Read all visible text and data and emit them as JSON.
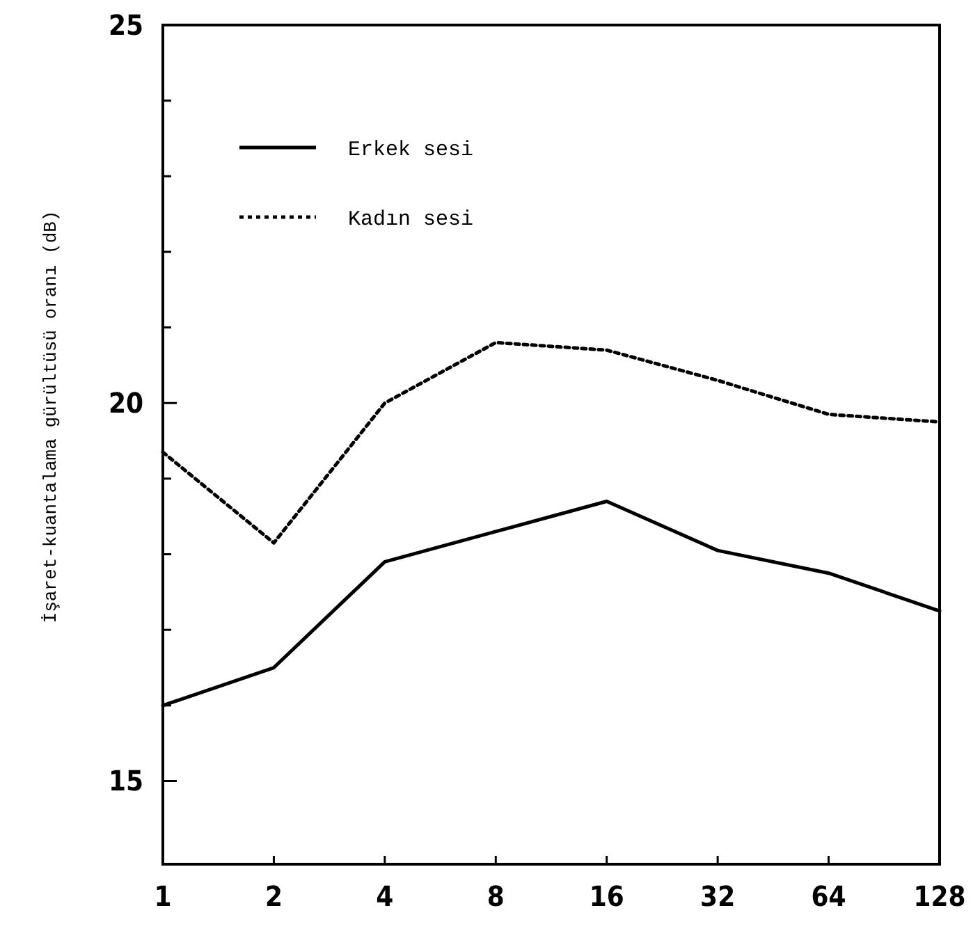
{
  "chart_data": {
    "type": "line",
    "ylabel": "İşaret-kuantalama gürültüsü oranı (dB)",
    "categories": [
      "1",
      "2",
      "4",
      "8",
      "16",
      "32",
      "64",
      "128"
    ],
    "ylim": [
      13.9,
      25
    ],
    "yticks": [
      15,
      {
        "value": 16,
        "label": null
      },
      {
        "value": 17,
        "label": null
      },
      {
        "value": 18,
        "label": null
      },
      {
        "value": 19,
        "label": null
      },
      20,
      {
        "value": 21,
        "label": null
      },
      {
        "value": 22,
        "label": null
      },
      {
        "value": 23,
        "label": null
      },
      {
        "value": 24,
        "label": null
      },
      25
    ],
    "legend": "top left",
    "grid": false,
    "marker": "none",
    "series": [
      {
        "name": "Erkek sesi",
        "color": "#000000",
        "line_style": "solid",
        "values": [
          16.0,
          16.5,
          17.9,
          18.3,
          18.7,
          18.05,
          17.75,
          17.25
        ]
      },
      {
        "name": "Kadın sesi",
        "color": "#000000",
        "line_style": "dotted",
        "values": [
          19.35,
          18.15,
          20.0,
          20.8,
          20.7,
          20.3,
          19.85,
          19.75
        ]
      }
    ]
  }
}
